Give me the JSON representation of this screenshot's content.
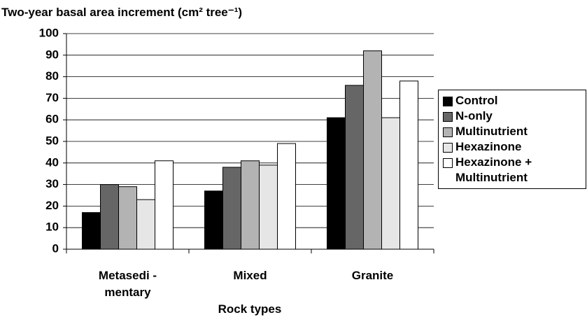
{
  "chart_data": {
    "type": "bar",
    "title": "Two-year basal area increment (cm² tree⁻¹)",
    "x_label": "Rock types",
    "categories": [
      "Metasedi -\nmentary",
      "Mixed",
      "Granite"
    ],
    "series": [
      {
        "name": "Control",
        "color": "#000000",
        "values": [
          17,
          27,
          61
        ]
      },
      {
        "name": "N-only",
        "color": "#666666",
        "values": [
          30,
          38,
          76
        ]
      },
      {
        "name": "Multinutrient",
        "color": "#b3b3b3",
        "values": [
          29,
          41,
          92
        ]
      },
      {
        "name": "Hexazinone",
        "color": "#e6e6e6",
        "values": [
          23,
          39,
          61
        ]
      },
      {
        "name": "Hexazinone +\nMultinutrient",
        "color": "#ffffff",
        "values": [
          41,
          49,
          78
        ]
      }
    ],
    "ylim": [
      0,
      100
    ],
    "yticks": [
      0,
      10,
      20,
      30,
      40,
      50,
      60,
      70,
      80,
      90,
      100
    ],
    "grid": true,
    "legend": "right"
  }
}
